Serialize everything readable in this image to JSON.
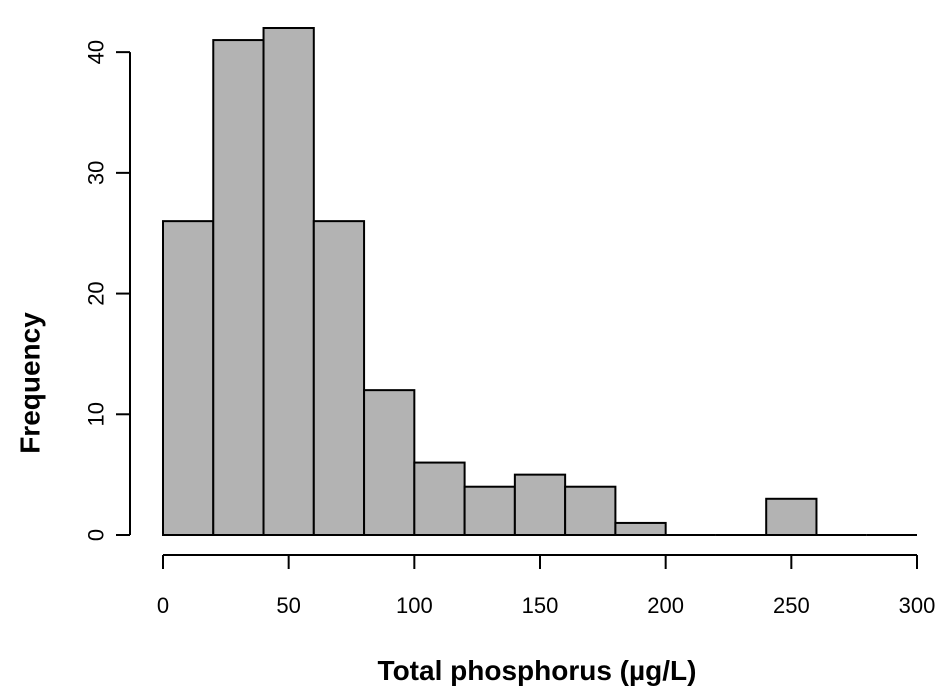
{
  "chart_data": {
    "type": "bar",
    "title": "",
    "xlabel": "Total phosphorus (µg/L)",
    "ylabel": "Frequency",
    "bins": [
      {
        "from": 0,
        "to": 20,
        "count": 26
      },
      {
        "from": 20,
        "to": 40,
        "count": 41
      },
      {
        "from": 40,
        "to": 60,
        "count": 42
      },
      {
        "from": 60,
        "to": 80,
        "count": 26
      },
      {
        "from": 80,
        "to": 100,
        "count": 12
      },
      {
        "from": 100,
        "to": 120,
        "count": 6
      },
      {
        "from": 120,
        "to": 140,
        "count": 4
      },
      {
        "from": 140,
        "to": 160,
        "count": 5
      },
      {
        "from": 160,
        "to": 180,
        "count": 4
      },
      {
        "from": 180,
        "to": 200,
        "count": 1
      },
      {
        "from": 200,
        "to": 220,
        "count": 0
      },
      {
        "from": 220,
        "to": 240,
        "count": 0
      },
      {
        "from": 240,
        "to": 260,
        "count": 3
      },
      {
        "from": 260,
        "to": 280,
        "count": 0
      },
      {
        "from": 280,
        "to": 300,
        "count": 0
      }
    ],
    "xlim": [
      0,
      300
    ],
    "ylim": [
      0,
      42
    ],
    "x_ticks": [
      "0",
      "50",
      "100",
      "150",
      "200",
      "250",
      "300"
    ],
    "y_ticks": [
      "0",
      "10",
      "20",
      "30",
      "40"
    ],
    "grid": false,
    "bar_color": "#b3b3b3",
    "edge_color": "#000000"
  }
}
